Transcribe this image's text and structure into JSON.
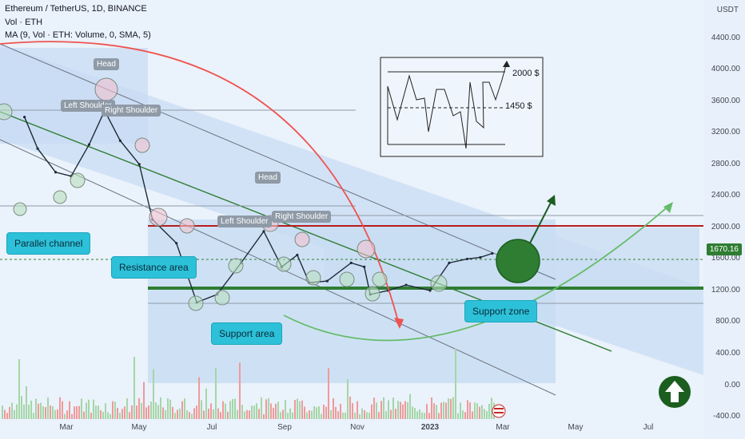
{
  "header": {
    "title": "Ethereum / TetherUS, 1D, BINANCE",
    "vol": "Vol · ETH",
    "ma": "MA (9, Vol · ETH: Volume, 0, SMA, 5)"
  },
  "chart_data": {
    "type": "line",
    "symbol": "ETHUSDT",
    "last_price": "1670.16",
    "y_unit": "USDT",
    "y_ticks": [
      "4400.00",
      "4000.00",
      "3600.00",
      "3200.00",
      "2800.00",
      "2400.00",
      "2000.00",
      "1600.00",
      "1200.00",
      "800.00",
      "400.00",
      "0.00",
      "-400.00"
    ],
    "x_ticks": [
      "Mar",
      "May",
      "Jul",
      "Sep",
      "Nov",
      "2023",
      "Mar",
      "May",
      "Jul"
    ],
    "ylim": [
      -450,
      4600
    ],
    "series": [
      {
        "x": [
          "2022-01-25",
          "2022-02-05",
          "2022-02-20",
          "2022-03-05",
          "2022-03-20",
          "2022-04-02",
          "2022-04-15",
          "2022-05-01",
          "2022-05-12",
          "2022-06-01",
          "2022-06-18",
          "2022-07-05",
          "2022-07-25",
          "2022-08-13",
          "2022-08-28",
          "2022-09-10",
          "2022-09-20",
          "2022-10-05",
          "2022-10-25",
          "2022-11-05",
          "2022-11-10",
          "2022-11-25",
          "2022-12-10",
          "2022-12-30",
          "2023-01-15",
          "2023-01-30",
          "2023-02-10",
          "2023-02-20"
        ],
        "values": [
          3400,
          3000,
          2700,
          2650,
          3050,
          3480,
          3100,
          2800,
          2100,
          1800,
          1050,
          1150,
          1550,
          1950,
          1500,
          1650,
          1300,
          1320,
          1550,
          1500,
          1150,
          1200,
          1270,
          1200,
          1550,
          1600,
          1620,
          1670
        ]
      }
    ],
    "levels": {
      "resistance": 1950,
      "support": 1160,
      "upper_gray": 2070,
      "lower_gray": 980
    }
  },
  "annotations": {
    "head_1": "Head",
    "left_shoulder_1": "Left Shoulder",
    "right_shoulder_1": "Right Shoulder",
    "head_2": "Head",
    "left_shoulder_2": "Left Shoulder",
    "right_shoulder_2": "Right Shoulder",
    "parallel_channel": "Parallel channel",
    "resistance_area": "Resistance area",
    "support_area": "Support area",
    "support_zone": "Support zone",
    "inset_high": "2000 $",
    "inset_low": "1450 $"
  },
  "colors": {
    "channel_fill": "#cfe0f5",
    "resistance": "#b71c1c",
    "support": "#2e7d32",
    "arc_red": "#ef5350",
    "arc_green": "#66bb6a",
    "callout": "#2cc1d8"
  }
}
